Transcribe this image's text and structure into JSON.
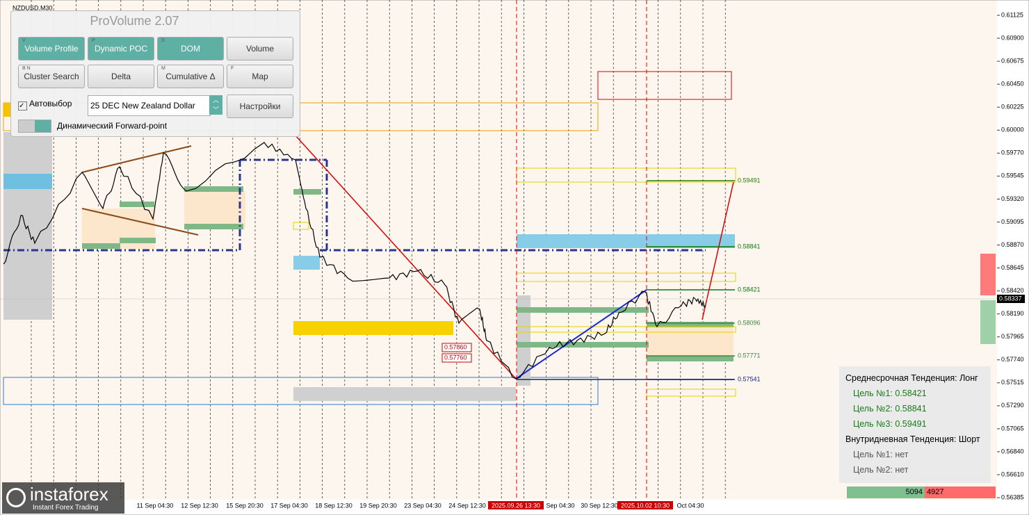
{
  "symbol": "NZDUSD,M30",
  "panel": {
    "title": "ProVolume 2.07",
    "buttons": [
      {
        "key": "V",
        "label": "Volume Profile"
      },
      {
        "key": "P",
        "label": "Dynamic POC"
      },
      {
        "key": "D",
        "label": "DOM"
      },
      {
        "key": null,
        "label": "Volume"
      },
      {
        "key": "B N",
        "label": "Cluster Search"
      },
      {
        "key": null,
        "label": "Delta"
      },
      {
        "key": "M",
        "label": "Cumulative Δ"
      },
      {
        "key": "F",
        "label": "Map"
      }
    ],
    "autoselect": "Автовыбор",
    "instrument": "25 DEC New Zealand Dollar",
    "settings": "Настройки",
    "forward": "Динамический Forward-point"
  },
  "price_axis": [
    "0.61125",
    "0.60900",
    "0.60675",
    "0.60450",
    "0.60225",
    "0.60000",
    "0.59770",
    "0.59545",
    "0.59320",
    "0.59095",
    "0.58870",
    "0.58645",
    "0.58420",
    "0.58190",
    "0.57965",
    "0.57740",
    "0.57515",
    "0.57290",
    "0.57065",
    "0.56840",
    "0.56610",
    "0.56385"
  ],
  "current_price": "0.58337",
  "time_axis": [
    "11 Sep 04:30",
    "12 Sep 12:30",
    "15 Sep 20:30",
    "17 Sep 04:30",
    "18 Sep 12:30",
    "19 Sep 20:30",
    "23 Sep 04:30",
    "24 Sep 12:30",
    "2025.09.26 13:30",
    "Sep 04:30",
    "30 Sep 12:30",
    "2025.10.02 10:30",
    "Oct 04:30"
  ],
  "levels": [
    "0.59491",
    "0.58841",
    "0.58421",
    "0.58096",
    "0.57771",
    "0.57541"
  ],
  "marked_levels": [
    "0.57860",
    "0.57760"
  ],
  "info": {
    "medium_trend": "Среднесрочная Тенденция: Лонг",
    "medium_targets": [
      "Цель №1: 0.58421",
      "Цель №2: 0.58841",
      "Цель №3: 0.59491"
    ],
    "intraday_trend": "Внутридневная Тенденция: Шорт",
    "intraday_targets": [
      "Цель №1: нет",
      "Цель №2: нет"
    ]
  },
  "volume_split": [
    "5094",
    "4927"
  ],
  "watermark": {
    "brand": "instaforex",
    "tagline": "Instant Forex Trading"
  }
}
